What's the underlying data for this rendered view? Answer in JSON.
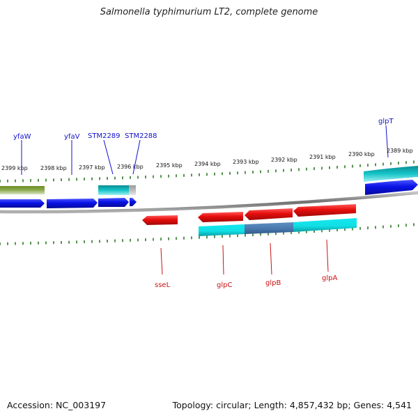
{
  "title": "Salmonella typhimurium LT2, complete genome",
  "footer": {
    "accession": "Accession: NC_003197",
    "stats": "Topology: circular; Length: 4,857,432 bp; Genes: 4,541"
  },
  "colors": {
    "forward_cds": "#0a12e6",
    "reverse_cds": "#e60d0d",
    "forward_feature": "#0fc3c8",
    "reverse_feature": "#11e8ee",
    "other_feature": "#6b8f28",
    "pseudo_feature": "#b3b3b3",
    "backbone": "#808080",
    "tick": "#2a7a22",
    "forward_label": "#1010cc",
    "reverse_label": "#cc1010"
  },
  "scale": {
    "labels": [
      "2399 kbp",
      "2398 kbp",
      "2397 kbp",
      "2396 kbp",
      "2395 kbp",
      "2394 kbp",
      "2393 kbp",
      "2392 kbp",
      "2391 kbp",
      "2390 kbp",
      "2389 kbp"
    ]
  },
  "forward_genes": [
    {
      "name": "yfaW",
      "icon": "arrow-right"
    },
    {
      "name": "yfaV",
      "icon": "arrow-right"
    },
    {
      "name": "STM2289",
      "icon": "arrow-right"
    },
    {
      "name": "STM2288",
      "icon": "arrow-right"
    },
    {
      "name": "glpT",
      "icon": "arrow-right"
    }
  ],
  "reverse_genes": [
    {
      "name": "sseL",
      "icon": "arrow-left"
    },
    {
      "name": "glpC",
      "icon": "arrow-left"
    },
    {
      "name": "glpB",
      "icon": "arrow-left"
    },
    {
      "name": "glpA",
      "icon": "arrow-left"
    }
  ]
}
